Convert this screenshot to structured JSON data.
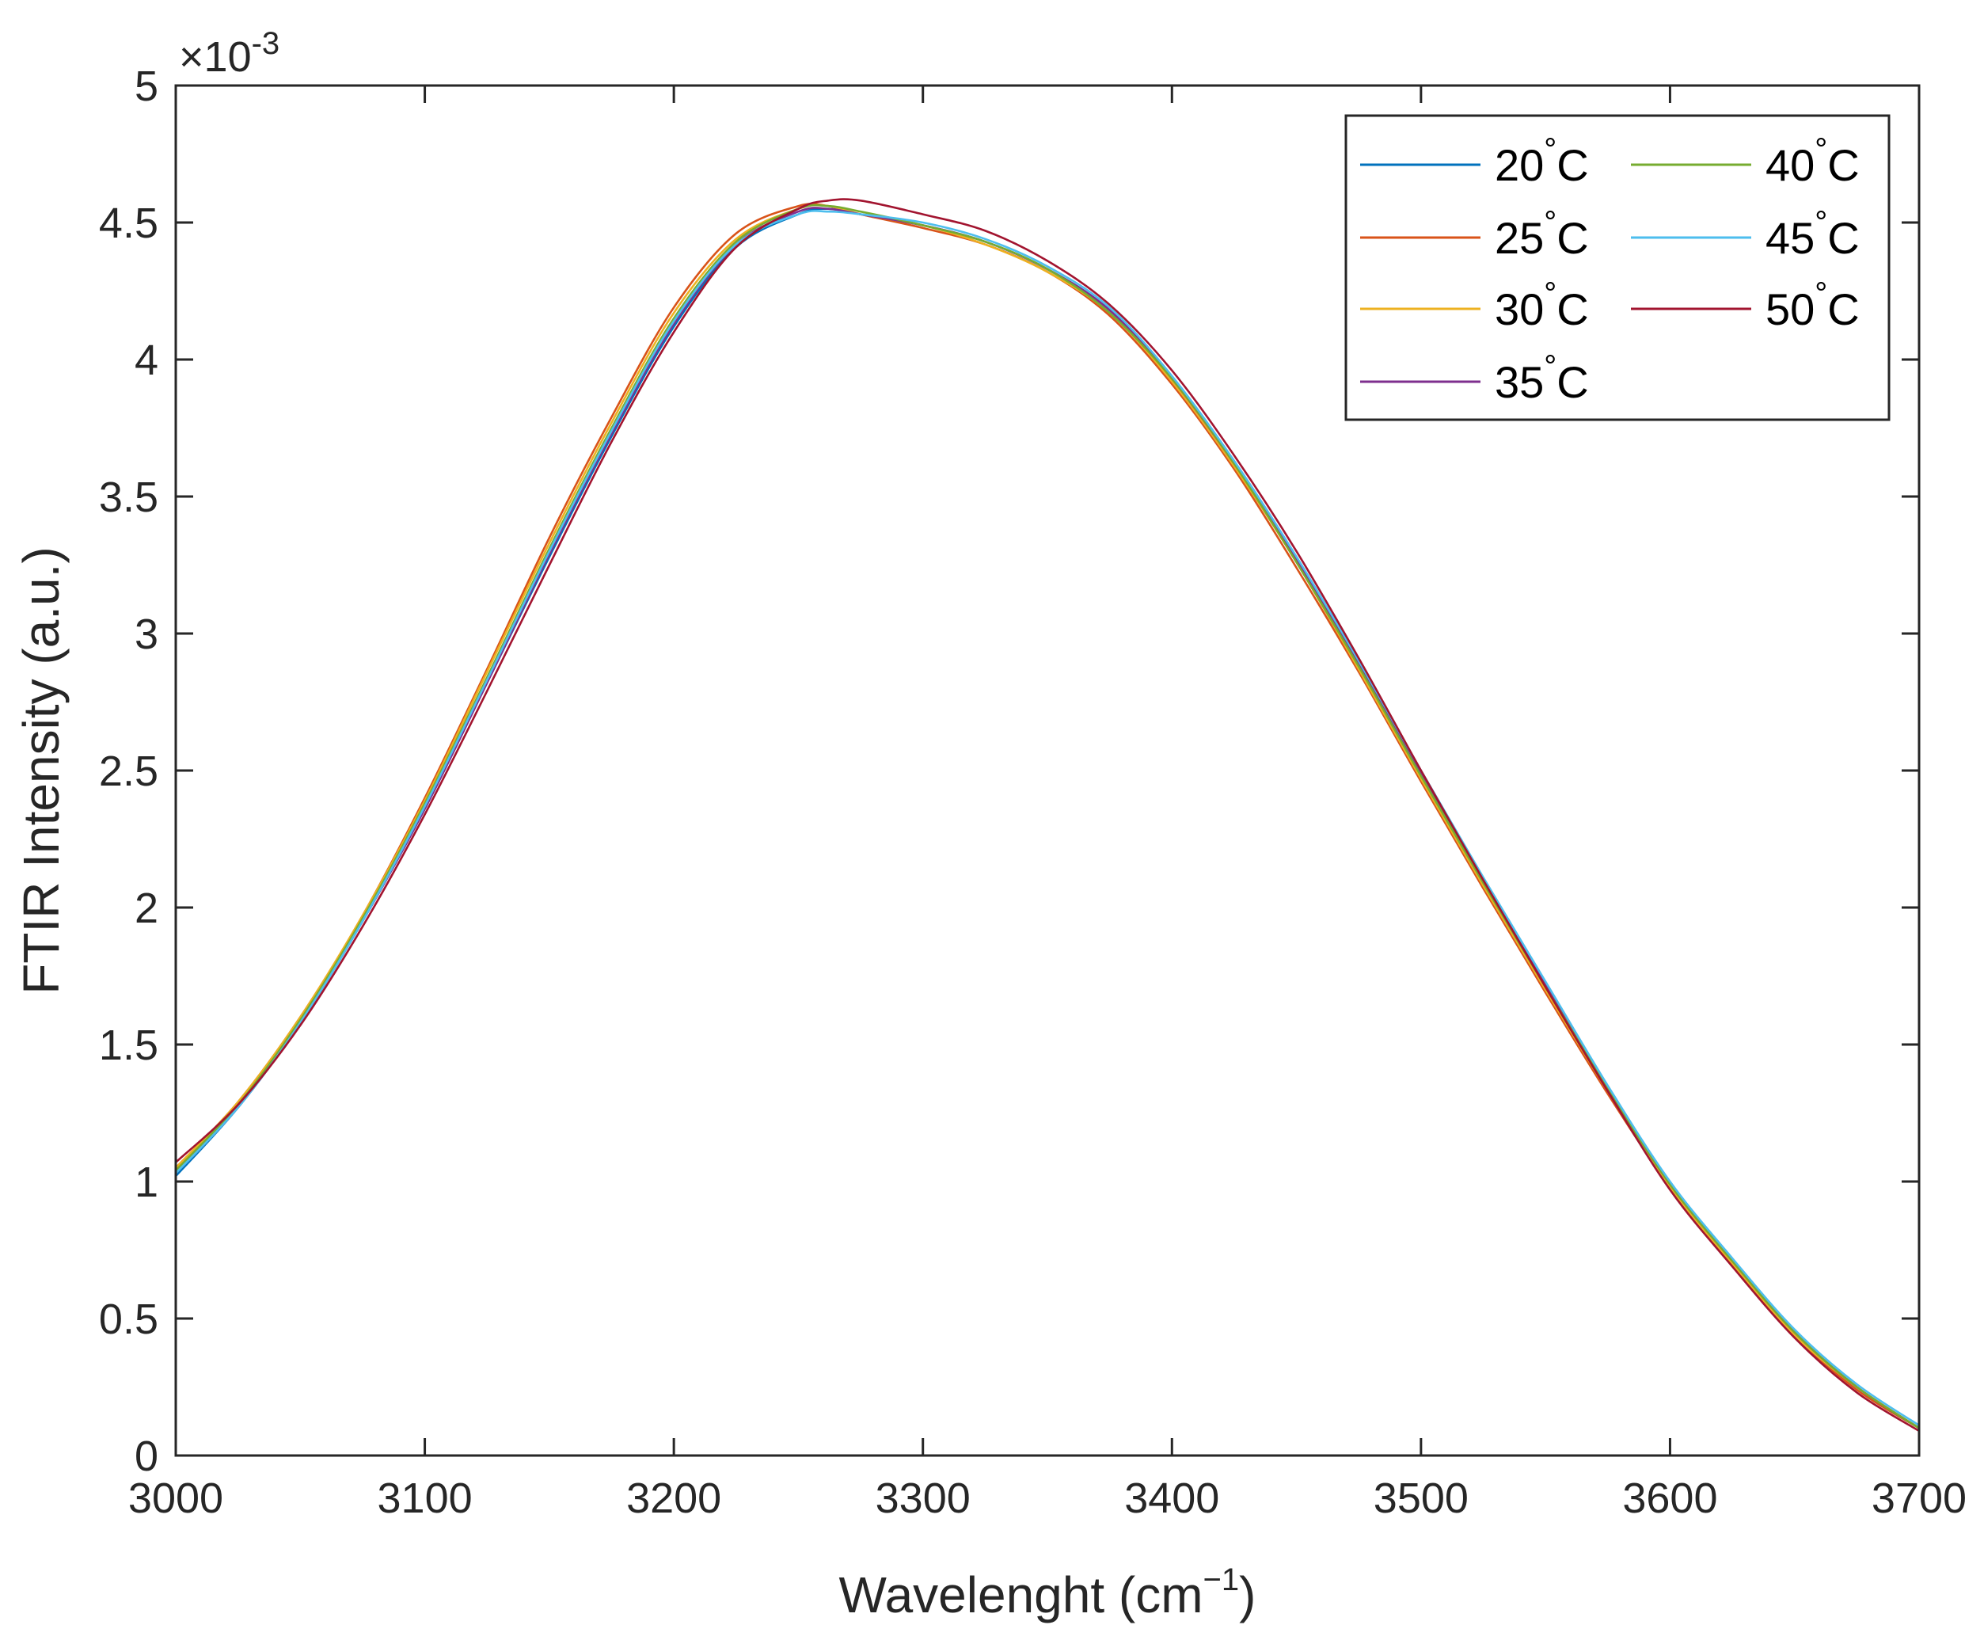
{
  "chart_data": {
    "type": "line",
    "xlabel": "Wavelenght (cm",
    "xlabel_sup": "−1",
    "xlabel_close": ")",
    "ylabel": "FTIR Intensity (a.u.)",
    "y_multiplier_times": "×10",
    "y_multiplier_exp": "-3",
    "xlim": [
      3000,
      3700
    ],
    "ylim": [
      0,
      5
    ],
    "grid": false,
    "legend_position": "top-right",
    "x_ticks": [
      3000,
      3100,
      3200,
      3300,
      3400,
      3500,
      3600,
      3700
    ],
    "x_tick_labels": [
      "3000",
      "3100",
      "3200",
      "3300",
      "3400",
      "3500",
      "3600",
      "3700"
    ],
    "y_ticks": [
      0,
      0.5,
      1,
      1.5,
      2,
      2.5,
      3,
      3.5,
      4,
      4.5,
      5
    ],
    "y_tick_labels": [
      "0",
      "0.5",
      "1",
      "1.5",
      "2",
      "2.5",
      "3",
      "3.5",
      "4",
      "4.5",
      "5"
    ],
    "x": [
      3000,
      3025,
      3050,
      3075,
      3100,
      3125,
      3150,
      3175,
      3200,
      3225,
      3250,
      3262,
      3275,
      3300,
      3325,
      3350,
      3375,
      3400,
      3425,
      3450,
      3475,
      3500,
      3525,
      3550,
      3575,
      3600,
      3625,
      3650,
      3675,
      3700
    ],
    "series": [
      {
        "name": "20",
        "color": "#0072BD",
        "values": [
          1.02,
          1.27,
          1.58,
          1.95,
          2.36,
          2.82,
          3.28,
          3.72,
          4.12,
          4.41,
          4.53,
          4.55,
          4.53,
          4.49,
          4.43,
          4.33,
          4.18,
          3.93,
          3.62,
          3.27,
          2.89,
          2.49,
          2.1,
          1.72,
          1.34,
          0.99,
          0.71,
          0.45,
          0.25,
          0.1
        ]
      },
      {
        "name": "25",
        "color": "#D95319",
        "values": [
          1.05,
          1.29,
          1.6,
          1.97,
          2.4,
          2.87,
          3.35,
          3.79,
          4.19,
          4.46,
          4.56,
          4.56,
          4.53,
          4.48,
          4.42,
          4.32,
          4.16,
          3.91,
          3.6,
          3.24,
          2.86,
          2.46,
          2.07,
          1.69,
          1.32,
          0.98,
          0.7,
          0.44,
          0.24,
          0.1
        ]
      },
      {
        "name": "30",
        "color": "#EDB120",
        "values": [
          1.05,
          1.29,
          1.6,
          1.97,
          2.39,
          2.86,
          3.33,
          3.77,
          4.17,
          4.44,
          4.55,
          4.56,
          4.53,
          4.49,
          4.42,
          4.32,
          4.17,
          3.92,
          3.61,
          3.26,
          2.87,
          2.47,
          2.08,
          1.7,
          1.33,
          0.98,
          0.7,
          0.44,
          0.25,
          0.1
        ]
      },
      {
        "name": "35",
        "color": "#7E2F8E",
        "values": [
          1.03,
          1.27,
          1.58,
          1.95,
          2.36,
          2.82,
          3.29,
          3.73,
          4.13,
          4.42,
          4.54,
          4.55,
          4.53,
          4.49,
          4.43,
          4.33,
          4.18,
          3.93,
          3.62,
          3.27,
          2.89,
          2.49,
          2.1,
          1.72,
          1.34,
          0.99,
          0.71,
          0.45,
          0.25,
          0.1
        ]
      },
      {
        "name": "40",
        "color": "#77AC30",
        "values": [
          1.04,
          1.28,
          1.59,
          1.96,
          2.38,
          2.84,
          3.31,
          3.75,
          4.15,
          4.43,
          4.55,
          4.56,
          4.54,
          4.49,
          4.43,
          4.33,
          4.17,
          3.93,
          3.62,
          3.26,
          2.88,
          2.48,
          2.09,
          1.71,
          1.34,
          0.99,
          0.71,
          0.45,
          0.25,
          0.1
        ]
      },
      {
        "name": "45",
        "color": "#4DBEEE",
        "values": [
          1.03,
          1.27,
          1.58,
          1.95,
          2.37,
          2.83,
          3.3,
          3.74,
          4.14,
          4.42,
          4.53,
          4.54,
          4.53,
          4.5,
          4.44,
          4.34,
          4.19,
          3.94,
          3.63,
          3.28,
          2.9,
          2.5,
          2.11,
          1.73,
          1.35,
          1.0,
          0.72,
          0.46,
          0.26,
          0.11
        ]
      },
      {
        "name": "50",
        "color": "#A2142F",
        "values": [
          1.07,
          1.28,
          1.57,
          1.93,
          2.34,
          2.79,
          3.25,
          3.7,
          4.1,
          4.41,
          4.55,
          4.58,
          4.58,
          4.53,
          4.47,
          4.36,
          4.2,
          3.96,
          3.65,
          3.3,
          2.91,
          2.5,
          2.1,
          1.71,
          1.33,
          0.97,
          0.69,
          0.43,
          0.23,
          0.09
        ]
      }
    ],
    "legend": {
      "unit_degree": "°",
      "unit_letter": "C",
      "columns": [
        [
          0,
          1,
          2,
          3
        ],
        [
          4,
          5,
          6
        ]
      ]
    },
    "line_color_default": "#262626"
  }
}
